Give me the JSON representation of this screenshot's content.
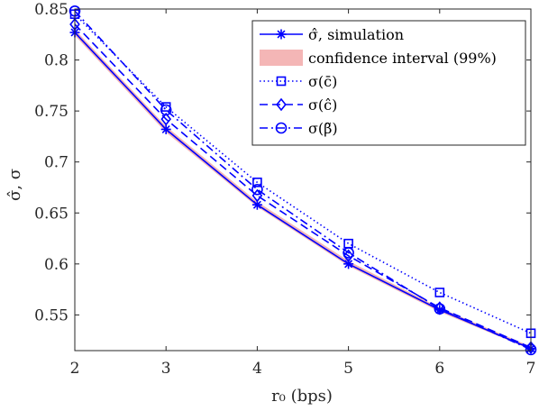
{
  "chart_data": {
    "type": "line",
    "xlabel": "r₀ (bps)",
    "ylabel": "σ̂, σ",
    "xlim": [
      2,
      7
    ],
    "ylim": [
      0.515,
      0.85
    ],
    "x_ticks": [
      "2",
      "3",
      "4",
      "5",
      "6",
      "7"
    ],
    "y_ticks": [
      "0.55",
      "0.6",
      "0.65",
      "0.7",
      "0.75",
      "0.8",
      "0.85"
    ],
    "grid": false,
    "legend_placement": "top-right",
    "x": [
      2,
      3,
      4,
      5,
      6,
      7
    ],
    "confidence_band": {
      "name": "confidence interval (99%)",
      "lower": [
        0.824,
        0.729,
        0.656,
        0.598,
        0.553,
        0.516
      ],
      "upper": [
        0.83,
        0.735,
        0.661,
        0.603,
        0.557,
        0.519
      ],
      "color": "#f4b6b6"
    },
    "series": [
      {
        "name": "σ̂, simulation",
        "values": [
          0.827,
          0.732,
          0.658,
          0.6,
          0.555,
          0.517
        ],
        "color": "#0000ff",
        "dash": "solid",
        "marker": "asterisk"
      },
      {
        "name": "σ(c̄)",
        "values": [
          0.845,
          0.754,
          0.68,
          0.62,
          0.572,
          0.532
        ],
        "color": "#0000ff",
        "dash": "dotted",
        "marker": "square"
      },
      {
        "name": "σ(ĉ)",
        "values": [
          0.835,
          0.742,
          0.667,
          0.608,
          0.557,
          0.518
        ],
        "color": "#0000ff",
        "dash": "dashed",
        "marker": "diamond"
      },
      {
        "name": "σ(β̃)",
        "values": [
          0.848,
          0.751,
          0.673,
          0.611,
          0.556,
          0.516
        ],
        "color": "#0000ff",
        "dash": "dashdot",
        "marker": "circle"
      }
    ]
  }
}
